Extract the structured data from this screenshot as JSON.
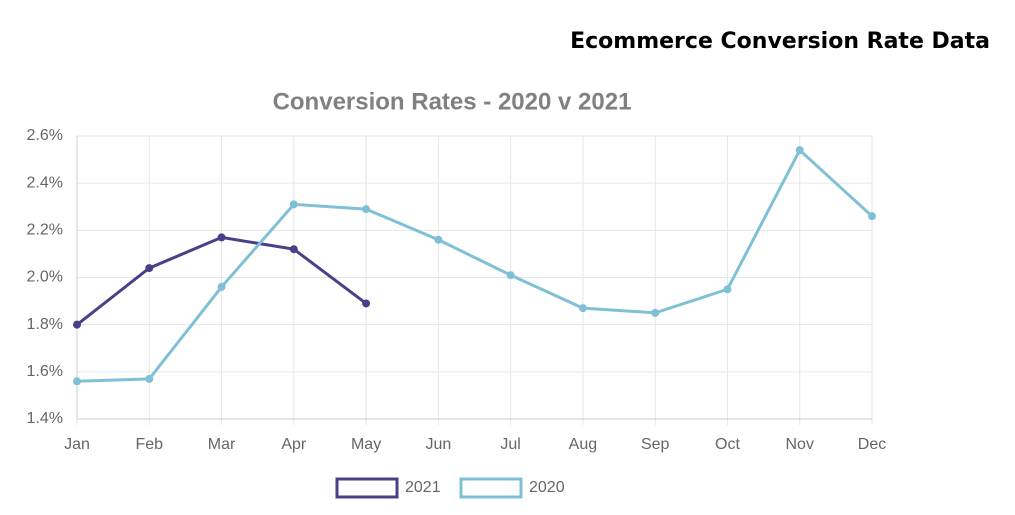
{
  "page_title": "Ecommerce Conversion Rate Data",
  "chart_data": {
    "type": "line",
    "title": "Conversion Rates - 2020 v 2021",
    "categories": [
      "Jan",
      "Feb",
      "Mar",
      "Apr",
      "May",
      "Jun",
      "Jul",
      "Aug",
      "Sep",
      "Oct",
      "Nov",
      "Dec"
    ],
    "series": [
      {
        "name": "2021",
        "color": "#4b3f87",
        "values": [
          1.8,
          2.04,
          2.17,
          2.12,
          1.89,
          null,
          null,
          null,
          null,
          null,
          null,
          null
        ]
      },
      {
        "name": "2020",
        "color": "#7fc0d6",
        "values": [
          1.56,
          1.57,
          1.96,
          2.31,
          2.29,
          2.16,
          2.01,
          1.87,
          1.85,
          1.95,
          2.54,
          2.26
        ]
      }
    ],
    "ylim": [
      1.4,
      2.6
    ],
    "yticks": [
      {
        "value": 1.4,
        "label": "1.4%"
      },
      {
        "value": 1.6,
        "label": "1.6%"
      },
      {
        "value": 1.8,
        "label": "1.8%"
      },
      {
        "value": 2.0,
        "label": "2.0%"
      },
      {
        "value": 2.2,
        "label": "2.2%"
      },
      {
        "value": 2.4,
        "label": "2.4%"
      },
      {
        "value": 2.6,
        "label": "2.6%"
      }
    ],
    "grid": true,
    "legend": "bottom"
  }
}
